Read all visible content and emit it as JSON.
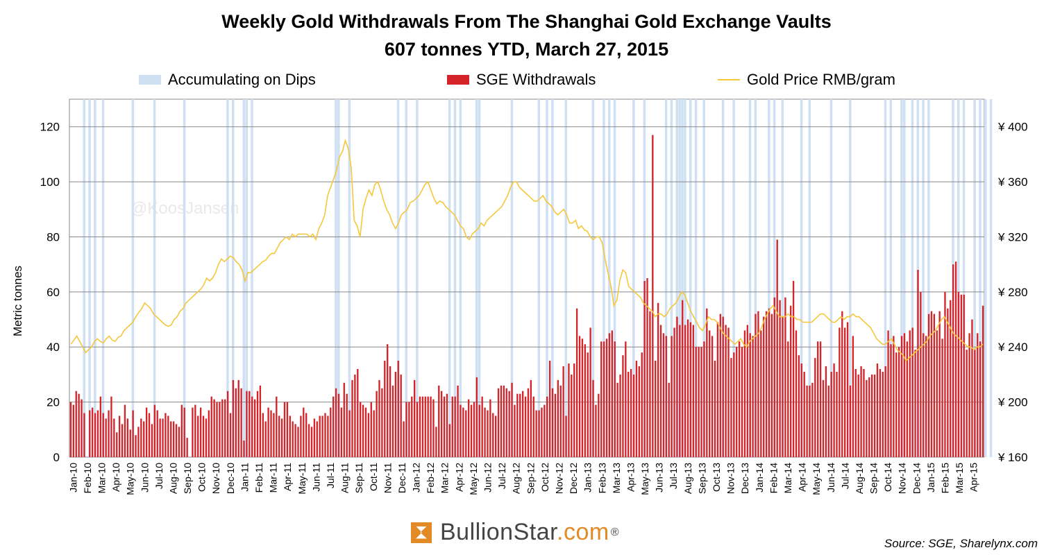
{
  "chart_data": {
    "type": "bar",
    "title": "Weekly Gold Withdrawals From The Shanghai Gold Exchange Vaults",
    "subtitle": "607 tonnes YTD, March 27, 2015",
    "ylabel": "Metric tonnes",
    "ylim": [
      0,
      120
    ],
    "y_ticks": [
      0,
      20,
      40,
      60,
      80,
      100,
      120
    ],
    "y2lim": [
      160,
      400
    ],
    "y2_ticks": [
      "¥ 160",
      "¥ 200",
      "¥ 240",
      "¥ 280",
      "¥ 320",
      "¥ 360",
      "¥ 400"
    ],
    "grid": true,
    "legend": {
      "placement": "top",
      "entries": [
        "Accumulating on Dips",
        "SGE Withdrawals",
        "Gold Price RMB/gram"
      ]
    },
    "x_labels": [
      "Jan-10",
      "Feb-10",
      "Mar-10",
      "Apr-10",
      "May-10",
      "Jun-10",
      "Jul-10",
      "Aug-10",
      "Sep-10",
      "Oct-10",
      "Nov-10",
      "Dec-10",
      "Jan-11",
      "Feb-11",
      "Mar-11",
      "Apr-11",
      "May-11",
      "Jun-11",
      "Jul-11",
      "Aug-11",
      "Sep-11",
      "Oct-11",
      "Nov-11",
      "Dec-11",
      "Jan-12",
      "Feb-12",
      "Mar-12",
      "Apr-12",
      "May-12",
      "Jun-12",
      "Jul-12",
      "Aug-12",
      "Sep-12",
      "Oct-12",
      "Nov-12",
      "Dec-12",
      "Jan-13",
      "Feb-13",
      "Mar-13",
      "Apr-13",
      "May-13",
      "Jun-13",
      "Jul-13",
      "Aug-13",
      "Sep-13",
      "Oct-13",
      "Nov-13",
      "Dec-13",
      "Jan-14",
      "Feb-14",
      "Mar-14",
      "Apr-14",
      "May-14",
      "Jun-14",
      "Jul-14",
      "Aug-14",
      "Sep-14",
      "Oct-14",
      "Nov-14",
      "Dec-14",
      "Jan-15",
      "Feb-15",
      "Mar-15",
      "Apr-15"
    ],
    "series": [
      {
        "name": "SGE Withdrawals",
        "color": "#d4242a",
        "type": "bar",
        "axis": "left",
        "values": [
          20,
          19,
          24,
          23,
          21,
          16,
          0,
          17,
          18,
          16,
          17,
          22,
          16,
          14,
          17,
          22,
          14,
          9,
          15,
          12,
          19,
          14,
          10,
          17,
          8,
          11,
          14,
          13,
          18,
          16,
          12,
          19,
          17,
          14,
          14,
          16,
          15,
          13,
          13,
          12,
          11,
          19,
          18,
          7,
          0,
          18,
          19,
          15,
          18,
          15,
          14,
          17,
          22,
          21,
          20,
          20,
          21,
          21,
          24,
          16,
          28,
          25,
          28,
          25,
          6,
          24,
          24,
          22,
          21,
          24,
          26,
          16,
          13,
          18,
          17,
          16,
          22,
          15,
          14,
          20,
          20,
          15,
          13,
          12,
          11,
          15,
          18,
          16,
          12,
          11,
          14,
          13,
          15,
          15,
          16,
          15,
          18,
          22,
          25,
          23,
          18,
          27,
          23,
          17,
          28,
          30,
          32,
          20,
          19,
          18,
          16,
          20,
          17,
          24,
          28,
          25,
          35,
          41,
          33,
          26,
          31,
          35,
          30,
          13,
          20,
          20,
          22,
          28,
          20,
          22,
          22,
          22,
          22,
          22,
          21,
          11,
          26,
          24,
          22,
          23,
          12,
          22,
          22,
          26,
          19,
          18,
          17,
          21,
          19,
          20,
          29,
          19,
          22,
          18,
          17,
          21,
          16,
          15,
          25,
          26,
          26,
          25,
          24,
          27,
          19,
          23,
          23,
          24,
          22,
          25,
          28,
          22,
          17,
          17,
          18,
          19,
          22,
          35,
          25,
          23,
          28,
          26,
          33,
          15,
          34,
          30,
          34,
          54,
          44,
          43,
          41,
          38,
          47,
          28,
          19,
          23,
          42,
          42,
          43,
          45,
          46,
          42,
          27,
          30,
          37,
          42,
          31,
          32,
          30,
          35,
          33,
          38,
          64,
          65,
          53,
          117,
          35,
          56,
          48,
          45,
          44,
          27,
          44,
          47,
          51,
          48,
          57,
          48,
          50,
          49,
          48,
          40,
          40,
          40,
          42,
          54,
          46,
          44,
          35,
          49,
          52,
          51,
          48,
          47,
          36,
          38,
          40,
          42,
          40,
          46,
          48,
          45,
          44,
          52,
          53,
          46,
          51,
          53,
          54,
          52,
          58,
          79,
          57,
          51,
          58,
          42,
          55,
          64,
          46,
          37,
          34,
          31,
          26,
          26,
          27,
          36,
          42,
          42,
          28,
          33,
          26,
          31,
          34,
          31,
          47,
          53,
          47,
          49,
          26,
          44,
          32,
          30,
          33,
          32,
          28,
          29,
          30,
          30,
          34,
          32,
          31,
          33,
          46,
          41,
          44,
          38,
          40,
          44,
          45,
          42,
          46,
          47,
          39,
          68,
          60,
          45,
          44,
          52,
          53,
          52,
          46,
          53,
          43,
          60,
          54,
          57,
          70,
          71,
          60,
          59,
          59,
          39,
          45,
          50,
          39,
          45,
          42,
          55
        ],
        "note_series": "approximate weekly values"
      },
      {
        "name": "Gold Price RMB/gram",
        "color": "#f6c63b",
        "type": "line",
        "axis": "right",
        "values": [
          242,
          245,
          248,
          244,
          240,
          236,
          238,
          240,
          244,
          246,
          244,
          243,
          246,
          248,
          245,
          244,
          247,
          248,
          252,
          254,
          256,
          258,
          262,
          265,
          268,
          272,
          270,
          268,
          264,
          262,
          260,
          258,
          256,
          255,
          256,
          260,
          262,
          266,
          268,
          272,
          274,
          276,
          278,
          280,
          282,
          285,
          290,
          288,
          290,
          294,
          300,
          304,
          302,
          304,
          306,
          305,
          302,
          300,
          296,
          288,
          294,
          294,
          296,
          298,
          300,
          302,
          303,
          306,
          308,
          308,
          312,
          316,
          318,
          320,
          318,
          322,
          320,
          322,
          322,
          322,
          322,
          320,
          322,
          318,
          326,
          330,
          336,
          350,
          356,
          362,
          368,
          378,
          382,
          390,
          384,
          370,
          332,
          328,
          320,
          340,
          348,
          354,
          350,
          358,
          360,
          354,
          346,
          340,
          336,
          330,
          326,
          330,
          336,
          338,
          340,
          345,
          346,
          348,
          350,
          354,
          358,
          360,
          354,
          348,
          344,
          346,
          345,
          342,
          340,
          338,
          336,
          332,
          328,
          326,
          320,
          318,
          322,
          324,
          326,
          330,
          328,
          332,
          334,
          336,
          338,
          340,
          342,
          346,
          350,
          356,
          360,
          360,
          356,
          354,
          352,
          350,
          348,
          346,
          346,
          348,
          350,
          346,
          344,
          342,
          338,
          336,
          338,
          340,
          336,
          330,
          330,
          332,
          326,
          328,
          325,
          324,
          320,
          318,
          320,
          320,
          316,
          304,
          294,
          284,
          270,
          274,
          288,
          296,
          294,
          284,
          282,
          280,
          278,
          276,
          272,
          270,
          268,
          266,
          262,
          264,
          264,
          262,
          264,
          268,
          270,
          272,
          276,
          280,
          278,
          272,
          266,
          262,
          258,
          254,
          252,
          256,
          262,
          260,
          260,
          258,
          254,
          250,
          248,
          246,
          244,
          242,
          244,
          246,
          242,
          240,
          244,
          246,
          248,
          250,
          254,
          260,
          264,
          268,
          270,
          266,
          262,
          262,
          262,
          264,
          262,
          262,
          260,
          260,
          258,
          258,
          258,
          258,
          260,
          262,
          264,
          264,
          262,
          260,
          258,
          258,
          260,
          262,
          260,
          262,
          262,
          264,
          262,
          262,
          260,
          258,
          256,
          254,
          250,
          246,
          244,
          242,
          242,
          244,
          246,
          242,
          238,
          236,
          234,
          230,
          232,
          234,
          236,
          238,
          240,
          242,
          244,
          248,
          250,
          252,
          256,
          260,
          262,
          258,
          254,
          250,
          248,
          246,
          244,
          242,
          240,
          240,
          238,
          240,
          240,
          242
        ]
      }
    ],
    "accumulating_on_dips_weeks": [
      5,
      7,
      9,
      12,
      23,
      31,
      42,
      58,
      60,
      64,
      65,
      67,
      98,
      99,
      103,
      121,
      124,
      128,
      140,
      142,
      144,
      150,
      151,
      163,
      173,
      176,
      178,
      183,
      193,
      197,
      199,
      201,
      208,
      212,
      220,
      222,
      224,
      225,
      226,
      227,
      229,
      231,
      234,
      241,
      245,
      251,
      253,
      258,
      260,
      263,
      270,
      273,
      281,
      288,
      301,
      303,
      307,
      308,
      311,
      313,
      315,
      317,
      326,
      328,
      330,
      334,
      336,
      338,
      340
    ]
  },
  "source": "Source: SGE, Sharelynx.com",
  "watermark": "@KoosJansen",
  "brand": {
    "name": "BullionStar",
    "domain": ".com",
    "mark": "®",
    "icon": "bullionstar-star-icon"
  }
}
